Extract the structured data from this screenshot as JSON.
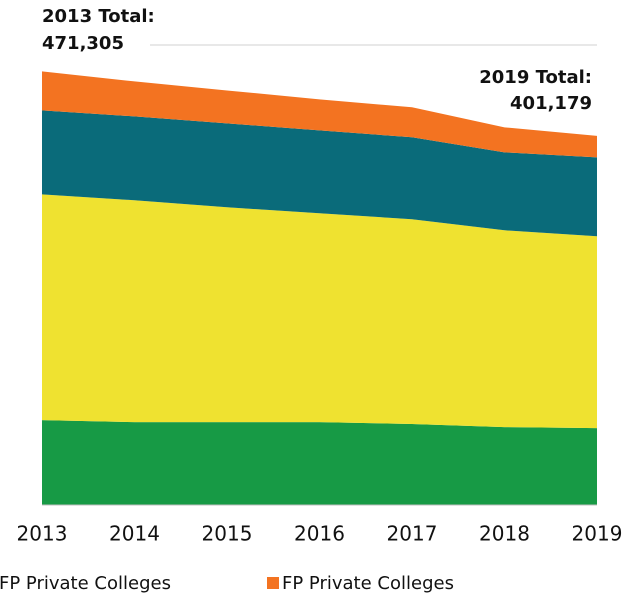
{
  "chart_data": {
    "type": "stacked_area",
    "categories": [
      "2013",
      "2014",
      "2015",
      "2016",
      "2017",
      "2018",
      "2019"
    ],
    "series": [
      {
        "color": "#179a45",
        "values": [
          92300,
          90100,
          90100,
          90100,
          88000,
          84700,
          83600
        ]
      },
      {
        "color": "#efe230",
        "values": [
          245400,
          241100,
          233500,
          227000,
          222600,
          213900,
          208500
        ]
      },
      {
        "name": "FP Private Colleges",
        "color": "#0a6b7a",
        "values": [
          91200,
          91200,
          91200,
          90100,
          89100,
          84700,
          85800
        ]
      },
      {
        "name": "FP Private Colleges",
        "color": "#f37321",
        "values": [
          42405,
          38000,
          35800,
          33700,
          32600,
          27200,
          23279
        ]
      }
    ],
    "ylim": [
      0,
      500000
    ],
    "annotations": [
      {
        "lines": [
          "2013 Total:",
          "471,305"
        ]
      },
      {
        "lines": [
          "2019 Total:",
          "401,179"
        ]
      }
    ]
  }
}
